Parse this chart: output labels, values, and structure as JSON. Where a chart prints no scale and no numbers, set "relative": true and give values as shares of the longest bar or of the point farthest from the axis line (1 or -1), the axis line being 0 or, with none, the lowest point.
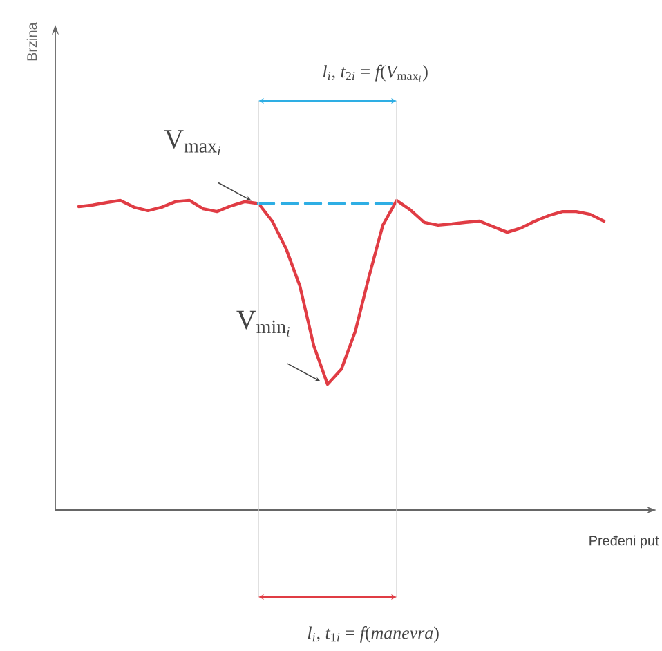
{
  "chart_data": {
    "type": "line",
    "relative": true,
    "tick_labels": false,
    "line_style": "solid",
    "xlabel": "Pređeni put",
    "categories": [
      null,
      null,
      null,
      null,
      null,
      null,
      null,
      null,
      null,
      null,
      null,
      null,
      null,
      null,
      null,
      null,
      null,
      null,
      null,
      null,
      null,
      null,
      null,
      null,
      null,
      null,
      null,
      null,
      null,
      null,
      null,
      null,
      null,
      null,
      null,
      null,
      null,
      null,
      null
    ],
    "series": [
      {
        "color": "#e03c44",
        "values": [
          0.98,
          0.985,
          0.993,
          1.0,
          0.978,
          0.967,
          0.978,
          0.996,
          1.0,
          0.973,
          0.964,
          0.982,
          0.996,
          0.99,
          0.933,
          0.844,
          0.723,
          0.531,
          0.406,
          0.455,
          0.576,
          0.754,
          0.92,
          1.0,
          0.969,
          0.929,
          0.92,
          0.924,
          0.929,
          0.933,
          0.915,
          0.897,
          0.911,
          0.933,
          0.951,
          0.964,
          0.964,
          0.955,
          0.933
        ]
      },
      {
        "color": "#2eaee4",
        "line_style": "dashed",
        "values": [
          null,
          null,
          null,
          null,
          null,
          null,
          null,
          null,
          null,
          null,
          null,
          null,
          null,
          0.99,
          0.99,
          0.99,
          0.99,
          0.99,
          0.99,
          0.99,
          0.99,
          0.99,
          0.99,
          0.99,
          null,
          null,
          null,
          null,
          null,
          null,
          null,
          null,
          null,
          null,
          null,
          null,
          null,
          null,
          null
        ]
      }
    ],
    "annotations": [
      "Brzina",
      "\\mathrm{V}_{\\mathrm{max}_i}",
      "\\mathrm{V}_{\\mathrm{min}_i}",
      "l_i\\text{, }t_{2i} = f(V_{\\mathrm{max}_i})",
      "l_i\\text{, }t_{1i} = f(manevra)"
    ]
  }
}
